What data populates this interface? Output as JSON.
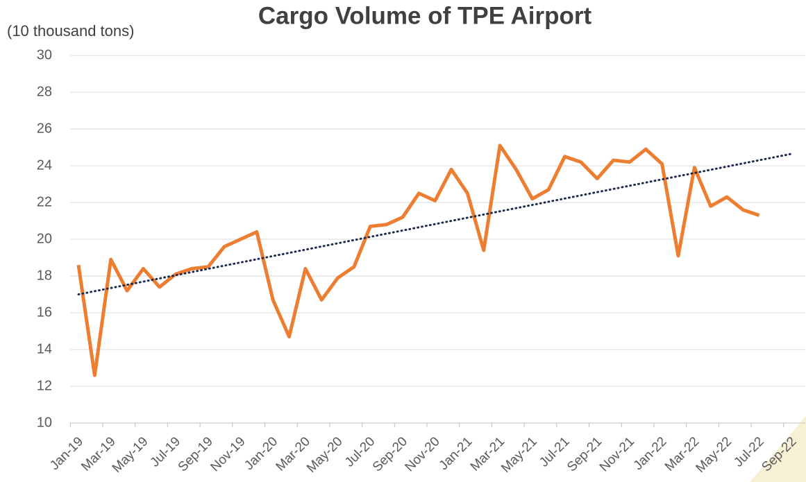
{
  "chart_data": {
    "type": "line",
    "title": "Cargo Volume of TPE Airport",
    "y_label": "(10 thousand tons)",
    "categories": [
      "Jan-19",
      null,
      "Mar-19",
      null,
      "May-19",
      null,
      "Jul-19",
      null,
      "Sep-19",
      null,
      "Nov-19",
      null,
      "Jan-20",
      null,
      "Mar-20",
      null,
      "May-20",
      null,
      "Jul-20",
      null,
      "Sep-20",
      null,
      "Nov-20",
      null,
      "Jan-21",
      null,
      "Mar-21",
      null,
      "May-21",
      null,
      "Jul-21",
      null,
      "Sep-21",
      null,
      "Nov-21",
      null,
      "Jan-22",
      null,
      "Mar-22",
      null,
      "May-22",
      null,
      "Jul-22",
      null,
      "Sep-22"
    ],
    "series": [
      {
        "color": "#ed7d31",
        "values": [
          18.6,
          12.6,
          18.9,
          17.2,
          18.4,
          17.4,
          18.1,
          18.4,
          18.5,
          19.6,
          20.0,
          20.4,
          16.7,
          14.7,
          18.4,
          16.7,
          17.9,
          18.5,
          20.7,
          20.8,
          21.2,
          22.5,
          22.1,
          23.8,
          22.5,
          19.4,
          25.1,
          23.8,
          22.2,
          22.7,
          24.5,
          24.2,
          23.3,
          24.3,
          24.2,
          24.9,
          24.1,
          19.1,
          23.9,
          21.8,
          22.3,
          21.6,
          21.3,
          null,
          null
        ]
      }
    ],
    "trendline": {
      "color": "#1f2a4d",
      "style": "dotted",
      "values": [
        17.0,
        24.65
      ]
    },
    "ylim": [
      10,
      30
    ],
    "yticks": [
      10,
      12,
      14,
      16,
      18,
      20,
      22,
      24,
      26,
      28,
      30
    ],
    "grid": true
  }
}
